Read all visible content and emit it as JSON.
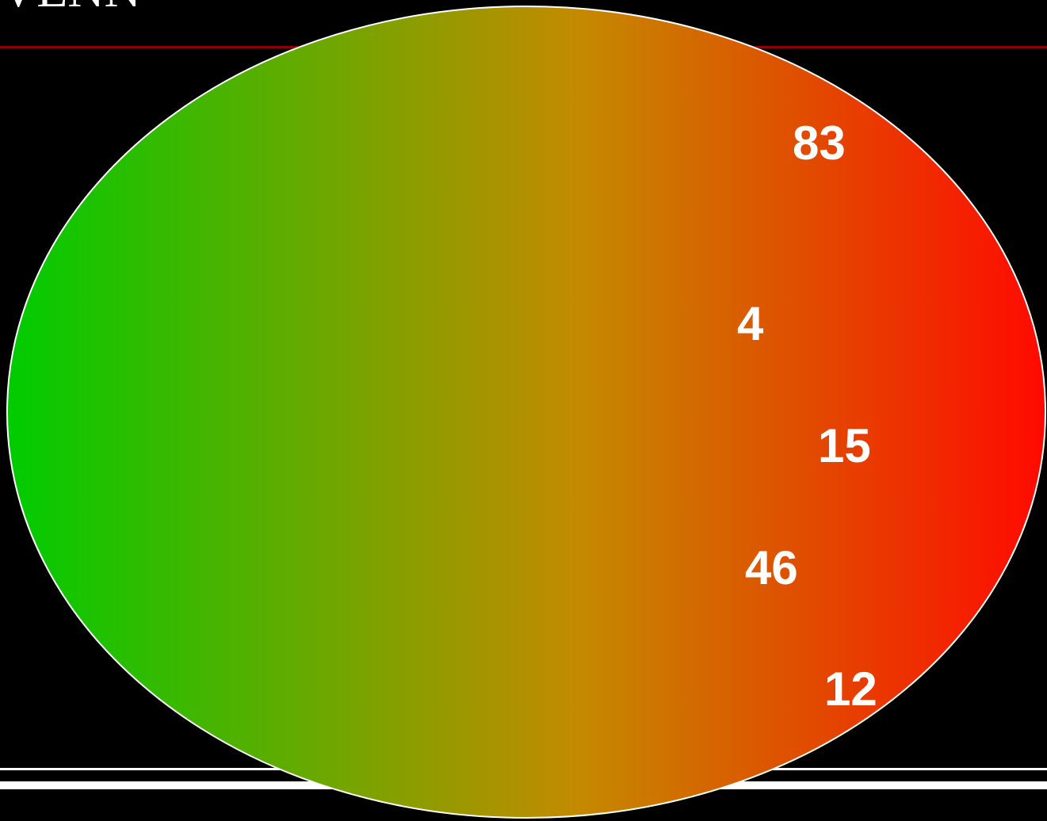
{
  "header": {
    "cropped_title_text": "VENN"
  },
  "ellipse": {
    "gradient_start_color": "#00cc00",
    "gradient_mid_color": "#c48a00",
    "gradient_end_color": "#ff0a00",
    "outline_color": "#ffffff"
  },
  "rules": {
    "top_rule_color": "#8b0000",
    "bottom_rule_color": "#ffffff"
  },
  "values": [
    {
      "id": "v1",
      "text": "83"
    },
    {
      "id": "v2",
      "text": "4"
    },
    {
      "id": "v3",
      "text": "15"
    },
    {
      "id": "v4",
      "text": "46"
    },
    {
      "id": "v5",
      "text": "12"
    }
  ]
}
